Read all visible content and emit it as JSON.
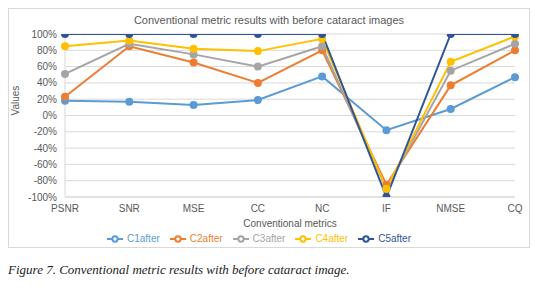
{
  "chart_data": {
    "type": "line",
    "title": "Conventional metric results with before cataract images",
    "caption": "Figure 7. Conventional metric results with before cataract image.",
    "x_label": "Conventional metrics",
    "y_label": "Values",
    "categories": [
      "PSNR",
      "SNR",
      "MSE",
      "CC",
      "NC",
      "IF",
      "NMSE",
      "CQ"
    ],
    "series": [
      {
        "name": "C1after",
        "color": "#5b9bd5",
        "marker": "circle",
        "values": [
          18,
          17,
          13,
          19,
          48,
          -18,
          8,
          47
        ]
      },
      {
        "name": "C2after",
        "color": "#ed7d31",
        "marker": "circle",
        "values": [
          23,
          85,
          65,
          40,
          80,
          -85,
          37,
          80
        ]
      },
      {
        "name": "C3after",
        "color": "#a5a5a5",
        "marker": "circle",
        "values": [
          51,
          88,
          75,
          60,
          85,
          -90,
          55,
          88
        ]
      },
      {
        "name": "C4after",
        "color": "#ffc000",
        "marker": "circle",
        "values": [
          85,
          92,
          82,
          79,
          94,
          -90,
          66,
          97
        ]
      },
      {
        "name": "C5after",
        "color": "#2f5597",
        "marker": "circle",
        "values": [
          100,
          100,
          100,
          100,
          100,
          -100,
          100,
          100
        ]
      }
    ],
    "ylim": [
      -100,
      100
    ],
    "yticks": [
      {
        "value": -100,
        "label": "-100%"
      },
      {
        "value": -80,
        "label": "-80%"
      },
      {
        "value": -60,
        "label": "-60%"
      },
      {
        "value": -40,
        "label": "-40%"
      },
      {
        "value": -20,
        "label": "-20%"
      },
      {
        "value": 0,
        "label": "0%"
      },
      {
        "value": 20,
        "label": "20%"
      },
      {
        "value": 40,
        "label": "40%"
      },
      {
        "value": 60,
        "label": "60%"
      },
      {
        "value": 80,
        "label": "80%"
      },
      {
        "value": 100,
        "label": "100%"
      }
    ],
    "grid": true,
    "legend": "bottom"
  }
}
